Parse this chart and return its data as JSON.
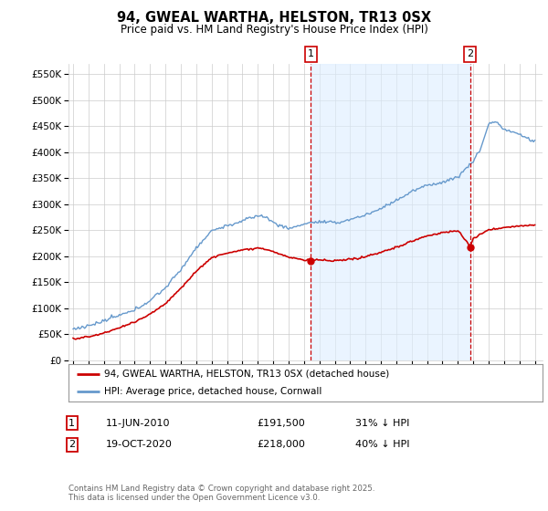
{
  "title": "94, GWEAL WARTHA, HELSTON, TR13 0SX",
  "subtitle": "Price paid vs. HM Land Registry's House Price Index (HPI)",
  "legend_property": "94, GWEAL WARTHA, HELSTON, TR13 0SX (detached house)",
  "legend_hpi": "HPI: Average price, detached house, Cornwall",
  "sale1_label": "1",
  "sale1_date": "11-JUN-2010",
  "sale1_price": "£191,500",
  "sale1_hpi": "31% ↓ HPI",
  "sale2_label": "2",
  "sale2_date": "19-OCT-2020",
  "sale2_price": "£218,000",
  "sale2_hpi": "40% ↓ HPI",
  "footer": "Contains HM Land Registry data © Crown copyright and database right 2025.\nThis data is licensed under the Open Government Licence v3.0.",
  "property_color": "#cc0000",
  "hpi_color": "#6699cc",
  "hpi_fill_color": "#ddeeff",
  "vline_color": "#cc0000",
  "bg_color": "#ffffff",
  "grid_color": "#cccccc",
  "ylim": [
    0,
    570000
  ],
  "yticks": [
    0,
    50000,
    100000,
    150000,
    200000,
    250000,
    300000,
    350000,
    400000,
    450000,
    500000,
    550000
  ],
  "sale1_x": 2010.44,
  "sale1_y": 191500,
  "sale2_x": 2020.8,
  "sale2_y": 218000,
  "xmin": 1995,
  "xmax": 2025
}
